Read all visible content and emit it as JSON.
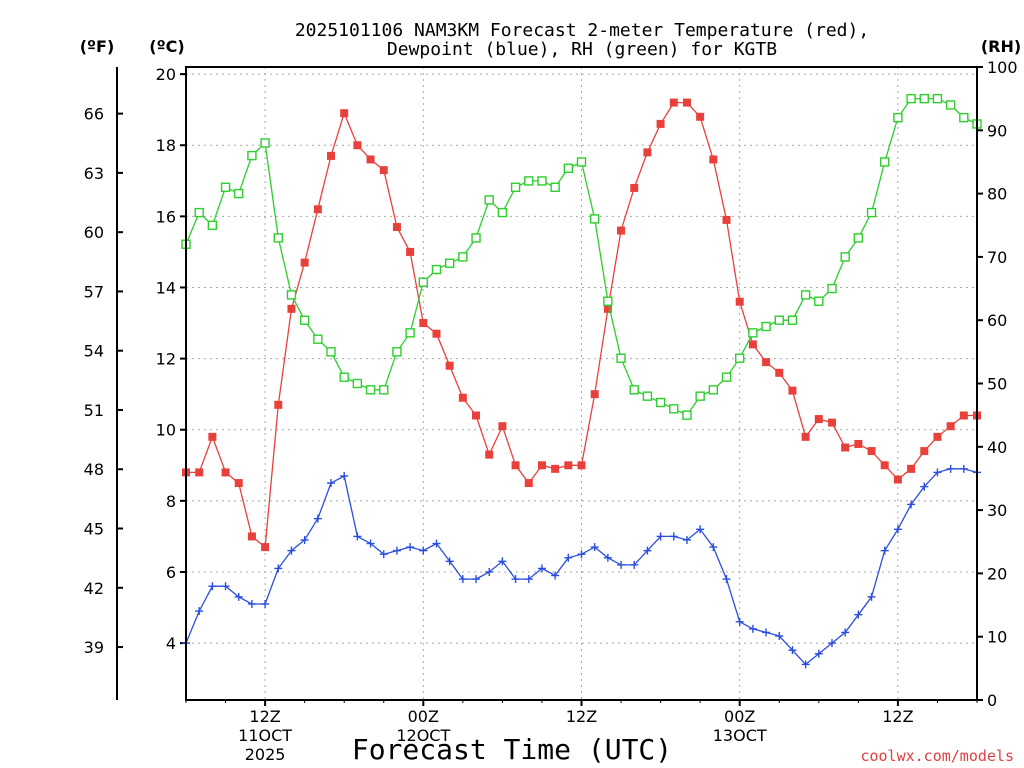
{
  "chart_data": {
    "type": "line",
    "title_line1": "2025101106 NAM3KM Forecast 2-meter Temperature (red),",
    "title_line2": "Dewpoint (blue), RH (green) for KGTB",
    "xlabel": "Forecast Time (UTC)",
    "credit": "coolwx.com/models",
    "unit_f": "(ºF)",
    "unit_c": "(ºC)",
    "unit_rh": "(RH)",
    "x_range_hours": [
      0,
      60
    ],
    "celsius_axis": {
      "range": [
        2.4,
        20.2
      ],
      "ticks": [
        "4",
        "6",
        "8",
        "10",
        "12",
        "14",
        "16",
        "18",
        "20"
      ]
    },
    "fahrenheit_axis": {
      "ticks": [
        "39",
        "42",
        "45",
        "48",
        "51",
        "54",
        "57",
        "60",
        "63",
        "66"
      ]
    },
    "rh_axis": {
      "range": [
        0,
        100
      ],
      "ticks": [
        "0",
        "10",
        "20",
        "30",
        "40",
        "50",
        "60",
        "70",
        "80",
        "90",
        "100"
      ]
    },
    "x_ticks": [
      {
        "hour": 6,
        "line1": "12Z",
        "line2": "11OCT",
        "line3": "2025"
      },
      {
        "hour": 18,
        "line1": "00Z",
        "line2": "12OCT",
        "line3": ""
      },
      {
        "hour": 30,
        "line1": "12Z",
        "line2": "",
        "line3": ""
      },
      {
        "hour": 42,
        "line1": "00Z",
        "line2": "13OCT",
        "line3": ""
      },
      {
        "hour": 54,
        "line1": "12Z",
        "line2": "",
        "line3": ""
      }
    ],
    "series": [
      {
        "name": "2-meter Temperature",
        "color": "#e8413c",
        "axis": "C",
        "marker": "filled-square",
        "values": [
          8.8,
          8.8,
          9.8,
          8.8,
          8.5,
          7.0,
          6.7,
          10.7,
          13.4,
          14.7,
          16.2,
          17.7,
          18.9,
          18.0,
          17.6,
          17.3,
          15.7,
          15.0,
          13.0,
          12.7,
          11.8,
          10.9,
          10.4,
          9.3,
          10.1,
          9.0,
          8.5,
          9.0,
          8.9,
          9.0,
          9.0,
          11.0,
          13.4,
          15.6,
          16.8,
          17.8,
          18.6,
          19.2,
          19.2,
          18.8,
          17.6,
          15.9,
          13.6,
          12.4,
          11.9,
          11.6,
          11.1,
          9.8,
          10.3,
          10.2,
          9.5,
          9.6,
          9.4,
          9.0,
          8.6,
          8.9,
          9.4,
          9.8,
          10.1,
          10.4,
          10.4
        ]
      },
      {
        "name": "Dewpoint",
        "color": "#2b4ee0",
        "axis": "C",
        "marker": "plus",
        "values": [
          4.0,
          4.9,
          5.6,
          5.6,
          5.3,
          5.1,
          5.1,
          6.1,
          6.6,
          6.9,
          7.5,
          8.5,
          8.7,
          7.0,
          6.8,
          6.5,
          6.6,
          6.7,
          6.6,
          6.8,
          6.3,
          5.8,
          5.8,
          6.0,
          6.3,
          5.8,
          5.8,
          6.1,
          5.9,
          6.4,
          6.5,
          6.7,
          6.4,
          6.2,
          6.2,
          6.6,
          7.0,
          7.0,
          6.9,
          7.2,
          6.7,
          5.8,
          4.6,
          4.4,
          4.3,
          4.2,
          3.8,
          3.4,
          3.7,
          4.0,
          4.3,
          4.8,
          5.3,
          6.6,
          7.2,
          7.9,
          8.4,
          8.8,
          8.9,
          8.9,
          8.8
        ]
      },
      {
        "name": "RH",
        "color": "#2ccf2c",
        "axis": "RH",
        "marker": "hollow-square",
        "values": [
          72,
          77,
          75,
          81,
          80,
          86,
          88,
          73,
          64,
          60,
          57,
          55,
          51,
          50,
          49,
          49,
          55,
          58,
          66,
          68,
          69,
          70,
          73,
          79,
          77,
          81,
          82,
          82,
          81,
          84,
          85,
          76,
          63,
          54,
          49,
          48,
          47,
          46,
          45,
          48,
          49,
          51,
          54,
          58,
          59,
          60,
          60,
          64,
          63,
          65,
          70,
          73,
          77,
          85,
          92,
          95,
          95,
          95,
          94,
          92,
          91
        ]
      }
    ]
  }
}
